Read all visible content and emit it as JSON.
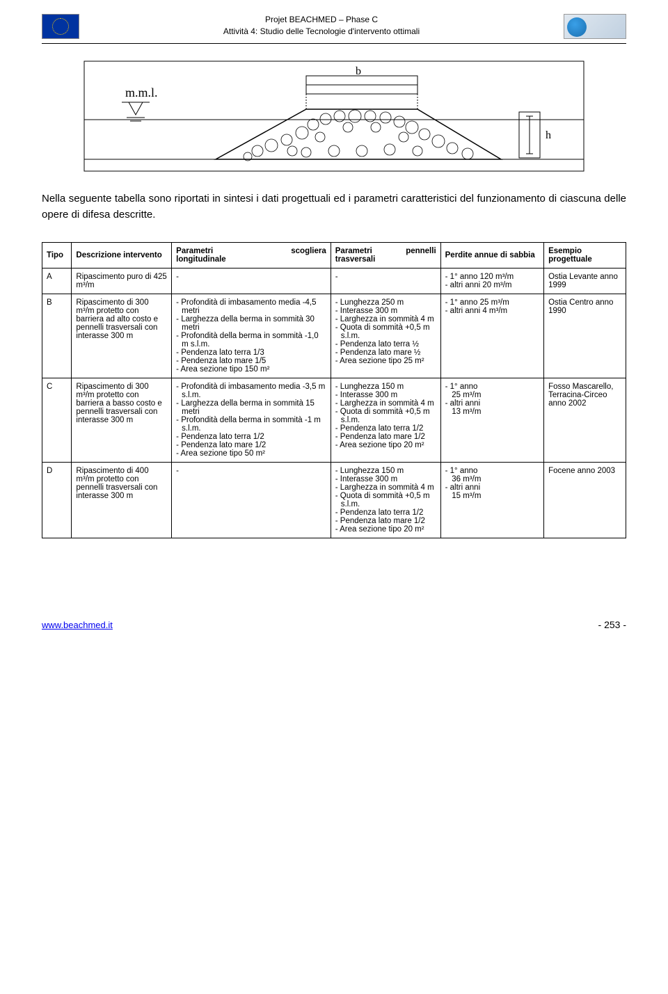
{
  "header": {
    "line1": "Projet  BEACHMED – Phase C",
    "line2": "Attività 4: Studio delle Tecnologie d'intervento ottimali"
  },
  "diagram": {
    "labels": {
      "mml": "m.m.l.",
      "b": "b",
      "h": "h"
    },
    "stroke": "#000000",
    "fill_rocks": "#ffffff"
  },
  "intro": "Nella seguente tabella sono riportati in sintesi i dati progettuali ed i parametri caratteristici del funzionamento di ciascuna delle opere di difesa descritte.",
  "table": {
    "columns": {
      "tipo": "Tipo",
      "desc": "Descrizione intervento",
      "p1a": "Parametri",
      "p1b": "scogliera",
      "p1c": "longitudinale",
      "p2a": "Parametri",
      "p2b": "pennelli",
      "p2c": "trasversali",
      "perdite": "Perdite annue di sabbia",
      "esempio_a": "Esempio",
      "esempio_b": "progettuale"
    },
    "rows": [
      {
        "tipo": "A",
        "desc": "Ripascimento puro di 425 m³/m",
        "p1": "-",
        "p2": "-",
        "perdite": [
          "1° anno 120 m³/m",
          "altri anni 20 m³/m"
        ],
        "esempio": "Ostia Levante anno 1999"
      },
      {
        "tipo": "B",
        "desc": "Ripascimento di 300 m³/m protetto con barriera ad alto costo e pennelli trasversali con interasse 300 m",
        "p1": [
          "Profondità di imbasamento media -4,5 metri",
          "Larghezza della berma in sommità 30 metri",
          "Profondità della berma in sommità -1,0 m s.l.m.",
          "Pendenza lato terra 1/3",
          "Pendenza lato mare 1/5",
          "Area sezione tipo 150 m²"
        ],
        "p2": [
          "Lunghezza 250 m",
          "Interasse 300 m",
          "Larghezza in sommità 4 m",
          "Quota di sommità +0,5 m s.l.m.",
          "Pendenza lato terra ½",
          "Pendenza lato mare ½",
          "Area sezione tipo 25 m²"
        ],
        "perdite": [
          "1° anno 25 m³/m",
          "altri anni 4 m³/m"
        ],
        "esempio": "Ostia Centro anno 1990"
      },
      {
        "tipo": "C",
        "desc": "Ripascimento di 300 m³/m protetto con barriera a basso costo e pennelli trasversali con interasse 300 m",
        "p1": [
          "Profondità di imbasamento media -3,5 m s.l.m.",
          "Larghezza della berma in sommità 15 metri",
          "Profondità della berma in sommità -1 m s.l.m.",
          "Pendenza lato terra 1/2",
          "Pendenza lato mare 1/2",
          "Area sezione tipo 50 m²"
        ],
        "p2": [
          "Lunghezza 150 m",
          "Interasse 300 m",
          "Larghezza in sommità 4 m",
          "Quota di sommità +0,5 m s.l.m.",
          "Pendenza lato terra 1/2",
          "Pendenza lato mare 1/2",
          "Area sezione tipo 20 m²"
        ],
        "perdite_multi": [
          "- 1° anno",
          "   25 m³/m",
          "- altri anni",
          "   13 m³/m"
        ],
        "esempio": "Fosso Mascarello, Terracina-Circeo anno 2002"
      },
      {
        "tipo": "D",
        "desc": "Ripascimento di 400 m³/m protetto con pennelli trasversali con interasse 300 m",
        "p1": "-",
        "p2": [
          "Lunghezza 150 m",
          "Interasse 300 m",
          "Larghezza in sommità 4 m",
          "Quota di sommità +0,5 m s.l.m.",
          "Pendenza lato terra 1/2",
          "Pendenza lato mare 1/2",
          "Area sezione tipo 20 m²"
        ],
        "perdite_multi": [
          "- 1° anno",
          "   36 m³/m",
          "- altri anni",
          "   15 m³/m"
        ],
        "esempio": "Focene anno 2003"
      }
    ]
  },
  "footer": {
    "left": "www.beachmed.it",
    "right": "- 253 -"
  },
  "colors": {
    "text": "#000000",
    "link": "#0000ee",
    "border": "#000000",
    "eu_blue": "#0033a0",
    "eu_yellow": "#ffcc00"
  },
  "fonts": {
    "body_pt": 11.5,
    "intro_pt": 15,
    "header_pt": 12
  }
}
